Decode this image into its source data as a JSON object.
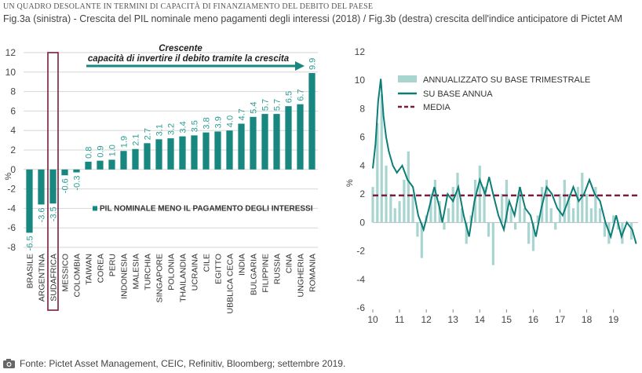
{
  "header": {
    "kicker": "UN QUADRO DESOLANTE IN TERMINI DI CAPACITÀ DI FINANZIAMENTO DEL DEBITO DEL PAESE",
    "subtitle": "Fig.3a (sinistra) - Crescita del PIL nominale meno pagamenti degli interessi (2018) / Fig.3b (destra) crescita dell'indice anticipatore di Pictet AM"
  },
  "footer": {
    "source": "Fonte: Pictet Asset Management, CEIC, Refinitiv, Bloomberg; settembre 2019.",
    "icon": "camera-icon"
  },
  "chart_data": [
    {
      "type": "bar",
      "ylabel": "%",
      "ylim": [
        -8,
        12
      ],
      "yticks": [
        -8,
        -6,
        -4,
        -2,
        0,
        2,
        4,
        6,
        8,
        10,
        12
      ],
      "legend": "PIL NOMINALE MENO IL PAGAMENTO DEGLI INTERESSI",
      "annotation": {
        "line1": "Crescente",
        "line2": "capacità di invertire il debito tramite la crescita"
      },
      "highlight": "SUDAFRICA",
      "bar_color": "#17877f",
      "categories": [
        "BRASILE",
        "ARGENTINA",
        "SUDAFRICA",
        "MESSICO",
        "COLOMBIA",
        "TAIWAN",
        "COREA",
        "PERU",
        "INDONESIA",
        "MALESIA",
        "TURCHIA",
        "SINGAPORE",
        "POLONIA",
        "THAILANDIA",
        "UCRAINA",
        "CILE",
        "EGITTO",
        "REPUBBLICA CECA",
        "INDIA",
        "BULGARIA",
        "FILIPPINE",
        "RUSSIA",
        "CINA",
        "UNGHERIA",
        "ROMANIA"
      ],
      "values": [
        -6.5,
        -3.6,
        -3.5,
        -0.6,
        -0.3,
        0.8,
        0.9,
        1.0,
        1.9,
        2.1,
        2.7,
        3.1,
        3.2,
        3.4,
        3.5,
        3.8,
        3.9,
        4.0,
        4.7,
        5.4,
        5.7,
        5.7,
        6.5,
        6.7,
        9.9
      ],
      "data_labels": [
        "-6.5",
        "-3.6",
        "-3.5",
        "-0.6",
        "-0.3",
        "0.8",
        "0.9",
        "1.0",
        "1.9",
        "2.1",
        "2.7",
        "3.1",
        "3.2",
        "3.4",
        "3.5",
        "3.8",
        "3.9",
        "4.0",
        "4.7",
        "5.4",
        "5.7",
        "5.7",
        "6.5",
        "6.7",
        "9.9"
      ]
    },
    {
      "type": "line",
      "ylabel": "%",
      "ylim": [
        -6,
        12
      ],
      "yticks": [
        -6,
        -4,
        -2,
        0,
        2,
        4,
        6,
        8,
        10,
        12
      ],
      "xticks": [
        "10",
        "11",
        "12",
        "13",
        "14",
        "15",
        "16",
        "17",
        "18",
        "19"
      ],
      "xlim": [
        2010,
        2019.92
      ],
      "series": [
        {
          "name": "ANNUALIZZATO SU BASE TRIMESTRALE",
          "kind": "bar",
          "color": "#a8d5d0",
          "x": [
            2010.0,
            2010.17,
            2010.33,
            2010.5,
            2010.67,
            2010.83,
            2011.0,
            2011.17,
            2011.33,
            2011.5,
            2011.67,
            2011.83,
            2012.0,
            2012.17,
            2012.33,
            2012.5,
            2012.67,
            2012.83,
            2013.0,
            2013.17,
            2013.33,
            2013.5,
            2013.67,
            2013.83,
            2014.0,
            2014.17,
            2014.33,
            2014.5,
            2014.67,
            2014.83,
            2015.0,
            2015.17,
            2015.33,
            2015.5,
            2015.67,
            2015.83,
            2016.0,
            2016.17,
            2016.33,
            2016.5,
            2016.67,
            2016.83,
            2017.0,
            2017.17,
            2017.33,
            2017.5,
            2017.67,
            2017.83,
            2018.0,
            2018.17,
            2018.33,
            2018.5,
            2018.67,
            2018.83,
            2019.0,
            2019.17,
            2019.33,
            2019.5,
            2019.67
          ],
          "y": [
            2.5,
            7.0,
            9.0,
            4.0,
            2.0,
            1.0,
            1.5,
            3.0,
            5.0,
            2.0,
            -1.0,
            -2.5,
            0.5,
            2.0,
            3.0,
            1.5,
            -0.5,
            1.0,
            2.5,
            3.5,
            1.0,
            -1.5,
            0.5,
            3.0,
            4.0,
            2.5,
            -1.0,
            -3.0,
            0.0,
            2.0,
            3.0,
            1.0,
            -0.5,
            2.5,
            1.0,
            -1.5,
            -2.0,
            0.5,
            2.5,
            3.0,
            1.0,
            -0.5,
            2.0,
            3.0,
            2.0,
            1.0,
            2.5,
            3.5,
            2.0,
            1.0,
            2.5,
            1.0,
            -1.0,
            -1.5,
            0.5,
            -0.5,
            -1.5,
            0.0,
            -1.2
          ]
        },
        {
          "name": "SU BASE ANNUA",
          "kind": "line",
          "color": "#0e7d78",
          "x": [
            2010.0,
            2010.1,
            2010.2,
            2010.3,
            2010.4,
            2010.5,
            2010.6,
            2010.75,
            2010.9,
            2011.1,
            2011.3,
            2011.5,
            2011.7,
            2011.9,
            2012.1,
            2012.3,
            2012.5,
            2012.6,
            2012.8,
            2013.0,
            2013.2,
            2013.4,
            2013.6,
            2013.8,
            2014.0,
            2014.2,
            2014.35,
            2014.5,
            2014.7,
            2014.9,
            2015.1,
            2015.3,
            2015.5,
            2015.7,
            2015.9,
            2016.1,
            2016.3,
            2016.5,
            2016.7,
            2016.9,
            2017.1,
            2017.3,
            2017.5,
            2017.7,
            2017.9,
            2018.1,
            2018.3,
            2018.5,
            2018.7,
            2018.9,
            2019.1,
            2019.3,
            2019.5,
            2019.7,
            2019.85
          ],
          "y": [
            3.8,
            5.5,
            8.5,
            10.1,
            7.5,
            6.0,
            5.0,
            4.0,
            3.5,
            4.0,
            3.0,
            2.5,
            0.5,
            -0.5,
            1.0,
            2.5,
            1.0,
            0.0,
            2.0,
            1.5,
            2.5,
            0.5,
            -1.0,
            1.5,
            3.0,
            2.0,
            3.2,
            2.0,
            0.5,
            -0.5,
            1.5,
            0.5,
            2.5,
            1.0,
            0.5,
            -1.0,
            1.0,
            2.5,
            2.0,
            1.0,
            0.5,
            1.5,
            2.5,
            1.5,
            2.0,
            3.0,
            2.0,
            1.5,
            0.0,
            -1.0,
            0.5,
            -1.0,
            0.0,
            -0.5,
            -1.5
          ]
        },
        {
          "name": "MEDIA",
          "kind": "dashed",
          "color": "#7a1c3e",
          "value": 1.9
        }
      ]
    }
  ]
}
